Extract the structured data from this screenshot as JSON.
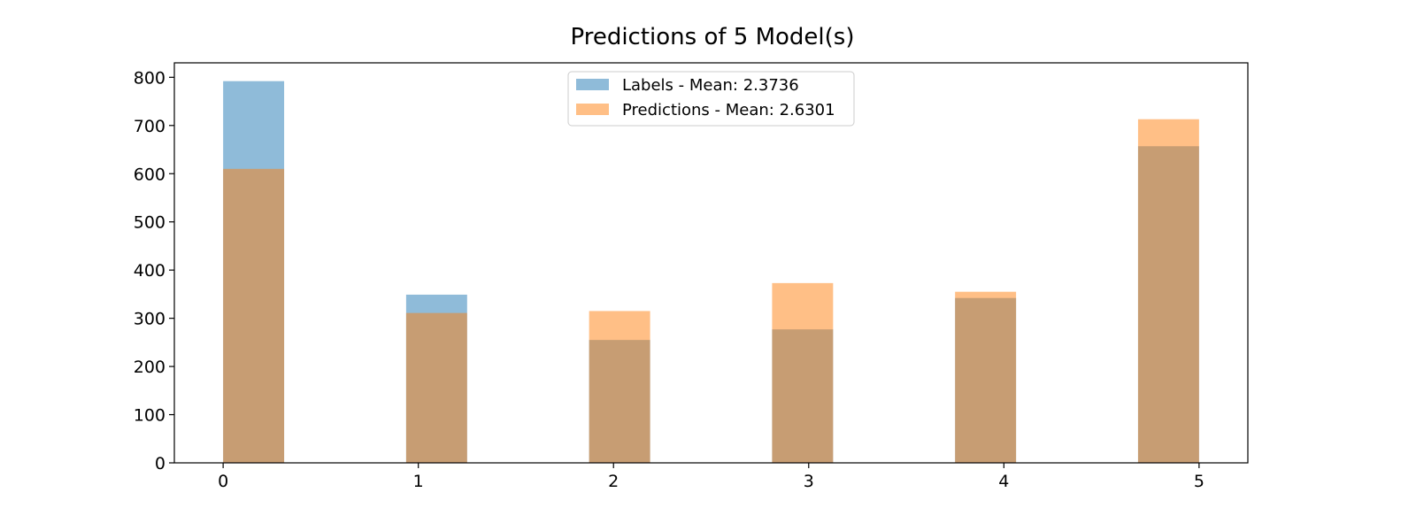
{
  "chart_data": {
    "type": "bar",
    "title": "Predictions of 5 Model(s)",
    "xlabel": "",
    "ylabel": "",
    "x_ticks": [
      "0",
      "1",
      "2",
      "3",
      "4",
      "5"
    ],
    "y_ticks": [
      "0",
      "100",
      "200",
      "300",
      "400",
      "500",
      "600",
      "700",
      "800"
    ],
    "xlim": [
      -0.25,
      5.25
    ],
    "ylim": [
      0,
      830
    ],
    "bar_width": 0.3125,
    "legend_position": "upper center",
    "grid": false,
    "series": [
      {
        "name": "Labels - Mean: 2.3736",
        "color": "#1f77b4",
        "alpha": 0.5,
        "bins": [
          {
            "start": 0.0,
            "value": 792
          },
          {
            "start": 0.9375,
            "value": 349
          },
          {
            "start": 1.875,
            "value": 255
          },
          {
            "start": 2.8125,
            "value": 277
          },
          {
            "start": 3.75,
            "value": 342
          },
          {
            "start": 4.6875,
            "value": 657
          }
        ]
      },
      {
        "name": "Predictions - Mean: 2.6301",
        "color": "#ff7f0e",
        "alpha": 0.5,
        "bins": [
          {
            "start": 0.0,
            "value": 610
          },
          {
            "start": 0.9375,
            "value": 311
          },
          {
            "start": 1.875,
            "value": 315
          },
          {
            "start": 2.8125,
            "value": 373
          },
          {
            "start": 3.75,
            "value": 355
          },
          {
            "start": 4.6875,
            "value": 713
          }
        ]
      }
    ]
  }
}
